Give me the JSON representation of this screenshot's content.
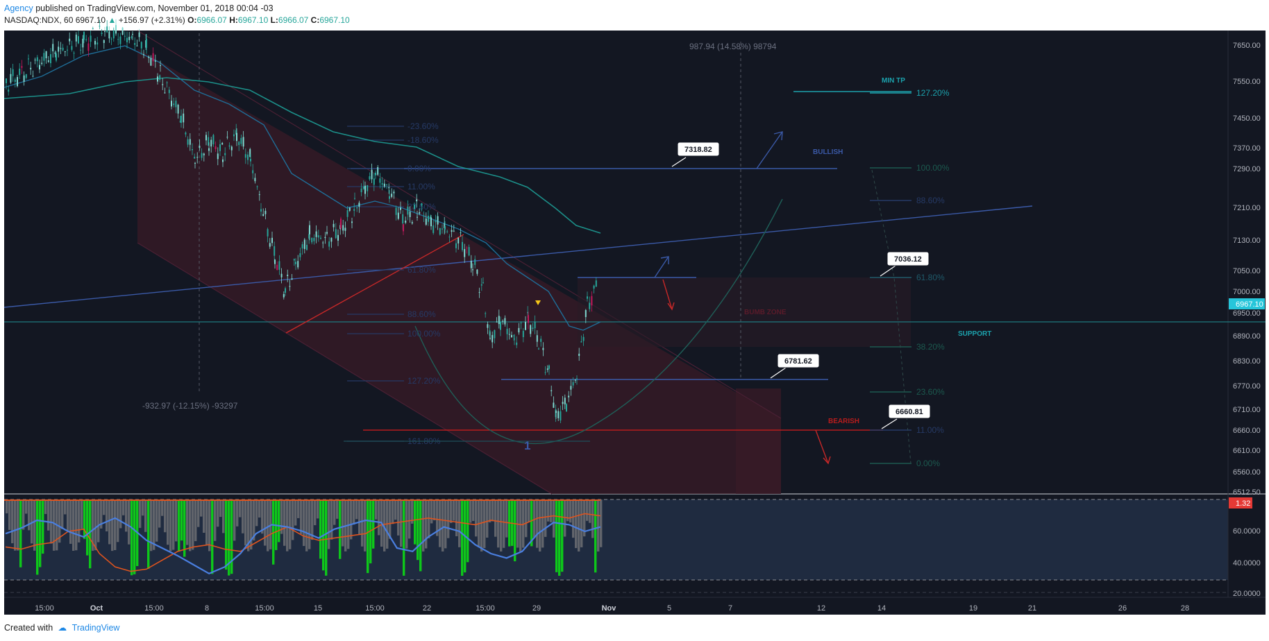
{
  "header": {
    "publisher": "Agency",
    "published_text": "published on TradingView.com, November 01, 2018 00:04 -03",
    "symbol": "NASDAQ:NDX, 60",
    "last": "6967.10",
    "change": "+156.97 (+2.31%)",
    "o_label": "O:",
    "o": "6966.07",
    "h_label": "H:",
    "h": "6967.10",
    "l_label": "L:",
    "l": "6966.07",
    "c_label": "C:",
    "c": "6967.10"
  },
  "footer": {
    "created_with": "Created with",
    "brand": "TradingView"
  },
  "colors": {
    "background": "#131722",
    "up": "#26a69a",
    "down": "#26a69a",
    "channel_fill": "#3a1b27",
    "fib": "#263a66",
    "ema_fast": "#1f6e98",
    "ema_slow": "#1c8f89",
    "bearish": "#b71c1c",
    "price_tag": "#26c6da",
    "rsi_blue": "#4a7fe0",
    "rsi_orange": "#e0541e",
    "vol_green": "#0ec71a",
    "vol_gray": "#6d6f73"
  },
  "chart_data": {
    "type": "candlestick",
    "symbol": "NASDAQ:NDX",
    "interval": "60",
    "y_axis_ticks": [
      "7650.00",
      "7550.00",
      "7450.00",
      "7370.00",
      "7290.00",
      "7210.00",
      "7130.00",
      "7050.00",
      "7000.00",
      "6950.00",
      "6890.00",
      "6830.00",
      "6770.00",
      "6710.00",
      "6660.00",
      "6610.00",
      "6560.00",
      "6512.50"
    ],
    "y_range": [
      6512.5,
      7680
    ],
    "x_axis_ticks": [
      "15:00",
      "Oct",
      "15:00",
      "8",
      "15:00",
      "15",
      "15:00",
      "22",
      "15:00",
      "29",
      "Nov",
      "5",
      "7",
      "12",
      "14",
      "19",
      "21",
      "26",
      "28"
    ],
    "last_price_label": "6967.10",
    "candles_close_sample": [
      6980,
      7080,
      7150,
      7200,
      7330,
      7400,
      7450,
      7300,
      7150,
      7050,
      6950,
      6930,
      7180,
      7280,
      7300,
      7260,
      7210,
      7150,
      7000,
      6900,
      6780,
      6720,
      6700,
      6880,
      6960,
      6990,
      6967.1
    ],
    "annotations": {
      "measure_top": "987.94 (14.58%) 98794",
      "measure_bottom": "-932.97 (-12.15%) -93297",
      "wave_label": "1",
      "labels": [
        "MIN TP",
        "BULLISH",
        "BUMB ZONE",
        "SUPPORT",
        "BEARISH"
      ],
      "price_callouts": [
        "7318.82",
        "7036.12",
        "6781.62",
        "6660.81"
      ],
      "fib_left": [
        "-23.60%",
        "-18.60%",
        "0.00%",
        "11.00%",
        "23.60%",
        "61.80%",
        "88.60%",
        "100.00%",
        "127.20%",
        "161.80%"
      ],
      "fib_right": [
        "127.20%",
        "100.00%",
        "88.60%",
        "61.80%",
        "38.20%",
        "23.60%",
        "11.00%",
        "0.00%"
      ]
    },
    "indicator": {
      "type": "oscillator",
      "y_ticks": [
        "60.0000",
        "40.0000",
        "20.0000"
      ],
      "last_value_label": "1.32",
      "blue_line": [
        58,
        63,
        70,
        68,
        60,
        55,
        66,
        72,
        64,
        52,
        45,
        38,
        30,
        22,
        28,
        40,
        58,
        66,
        64,
        60,
        54,
        62,
        66,
        70,
        68,
        45,
        42,
        55,
        64,
        60,
        48,
        40,
        36,
        42,
        58,
        68,
        66,
        60,
        64
      ],
      "orange_line": [
        46,
        44,
        48,
        50,
        60,
        62,
        40,
        28,
        24,
        26,
        34,
        42,
        46,
        48,
        44,
        42,
        50,
        58,
        64,
        56,
        52,
        54,
        56,
        58,
        66,
        68,
        70,
        72,
        70,
        68,
        66,
        70,
        68,
        66,
        72,
        74,
        72,
        76,
        74
      ]
    }
  }
}
